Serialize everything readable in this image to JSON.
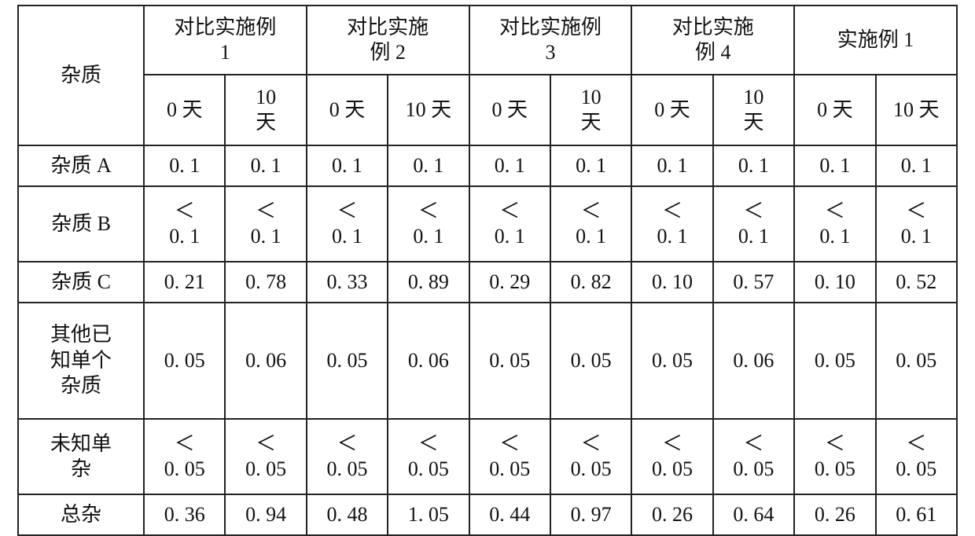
{
  "table": {
    "type": "table",
    "background_color": "#ffffff",
    "border_color": "#222222",
    "text_color": "#111111",
    "font_family_serif": "SimSun",
    "fontsize_pt": 20,
    "row_label_header": "杂质",
    "column_groups": [
      {
        "line1": "对比实施例",
        "line2": "1"
      },
      {
        "line1": "对比实施",
        "line2": "例 2"
      },
      {
        "line1": "对比实施例",
        "line2": "3"
      },
      {
        "line1": "对比实施",
        "line2": "例 4"
      },
      {
        "line1": "实施例 1",
        "line2": ""
      }
    ],
    "sub_headers": {
      "a": "0 天",
      "b_1line": "10 天",
      "b_line1": "10",
      "b_line2": "天"
    },
    "rows": [
      {
        "label": "杂质 A",
        "cells": [
          "0. 1",
          "0. 1",
          "0. 1",
          "0. 1",
          "0. 1",
          "0. 1",
          "0. 1",
          "0. 1",
          "0. 1",
          "0. 1"
        ]
      },
      {
        "label": "杂质 B",
        "cells_top": [
          "＜",
          "＜",
          "＜",
          "＜",
          "＜",
          "＜",
          "＜",
          "＜",
          "＜",
          "＜"
        ],
        "cells_bottom": [
          "0. 1",
          "0. 1",
          "0. 1",
          "0. 1",
          "0. 1",
          "0. 1",
          "0. 1",
          "0. 1",
          "0. 1",
          "0. 1"
        ]
      },
      {
        "label": "杂质 C",
        "cells": [
          "0. 21",
          "0. 78",
          "0. 33",
          "0. 89",
          "0. 29",
          "0. 82",
          "0. 10",
          "0. 57",
          "0. 10",
          "0. 52"
        ]
      },
      {
        "label_l1": "其他已",
        "label_l2": "知单个",
        "label_l3": "杂质",
        "cells": [
          "0. 05",
          "0. 06",
          "0. 05",
          "0. 06",
          "0. 05",
          "0. 05",
          "0. 05",
          "0. 06",
          "0. 05",
          "0. 05"
        ]
      },
      {
        "label_l1": "未知单",
        "label_l2": "杂",
        "cells_top": [
          "＜",
          "＜",
          "＜",
          "＜",
          "＜",
          "＜",
          "＜",
          "＜",
          "＜",
          "＜"
        ],
        "cells_bottom": [
          "0. 05",
          "0. 05",
          "0. 05",
          "0. 05",
          "0. 05",
          "0. 05",
          "0. 05",
          "0. 05",
          "0. 05",
          "0. 05"
        ]
      },
      {
        "label": "总杂",
        "cells": [
          "0. 36",
          "0. 94",
          "0. 48",
          "1. 05",
          "0. 44",
          "0. 97",
          "0. 26",
          "0. 64",
          "0. 26",
          "0. 61"
        ]
      }
    ]
  }
}
